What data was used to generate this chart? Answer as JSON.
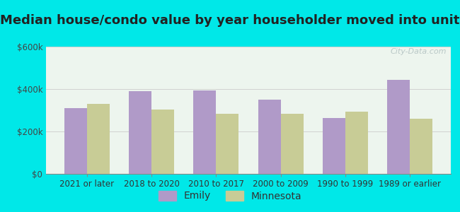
{
  "title": "Median house/condo value by year householder moved into unit",
  "categories": [
    "2021 or later",
    "2018 to 2020",
    "2010 to 2017",
    "2000 to 2009",
    "1990 to 1999",
    "1989 or earlier"
  ],
  "emily_values": [
    310000,
    390000,
    395000,
    350000,
    265000,
    445000
  ],
  "minnesota_values": [
    330000,
    305000,
    285000,
    285000,
    295000,
    260000
  ],
  "emily_color": "#b09ac8",
  "minnesota_color": "#c8cc96",
  "figure_bg": "#00e8e8",
  "plot_bg": "#eaf5ea",
  "ylim": [
    0,
    600000
  ],
  "yticks": [
    0,
    200000,
    400000,
    600000
  ],
  "ytick_labels": [
    "$0",
    "$200k",
    "$400k",
    "$600k"
  ],
  "legend_emily": "Emily",
  "legend_minnesota": "Minnesota",
  "bar_width": 0.35,
  "title_fontsize": 13,
  "tick_fontsize": 8.5,
  "legend_fontsize": 10,
  "watermark": "City-Data.com"
}
